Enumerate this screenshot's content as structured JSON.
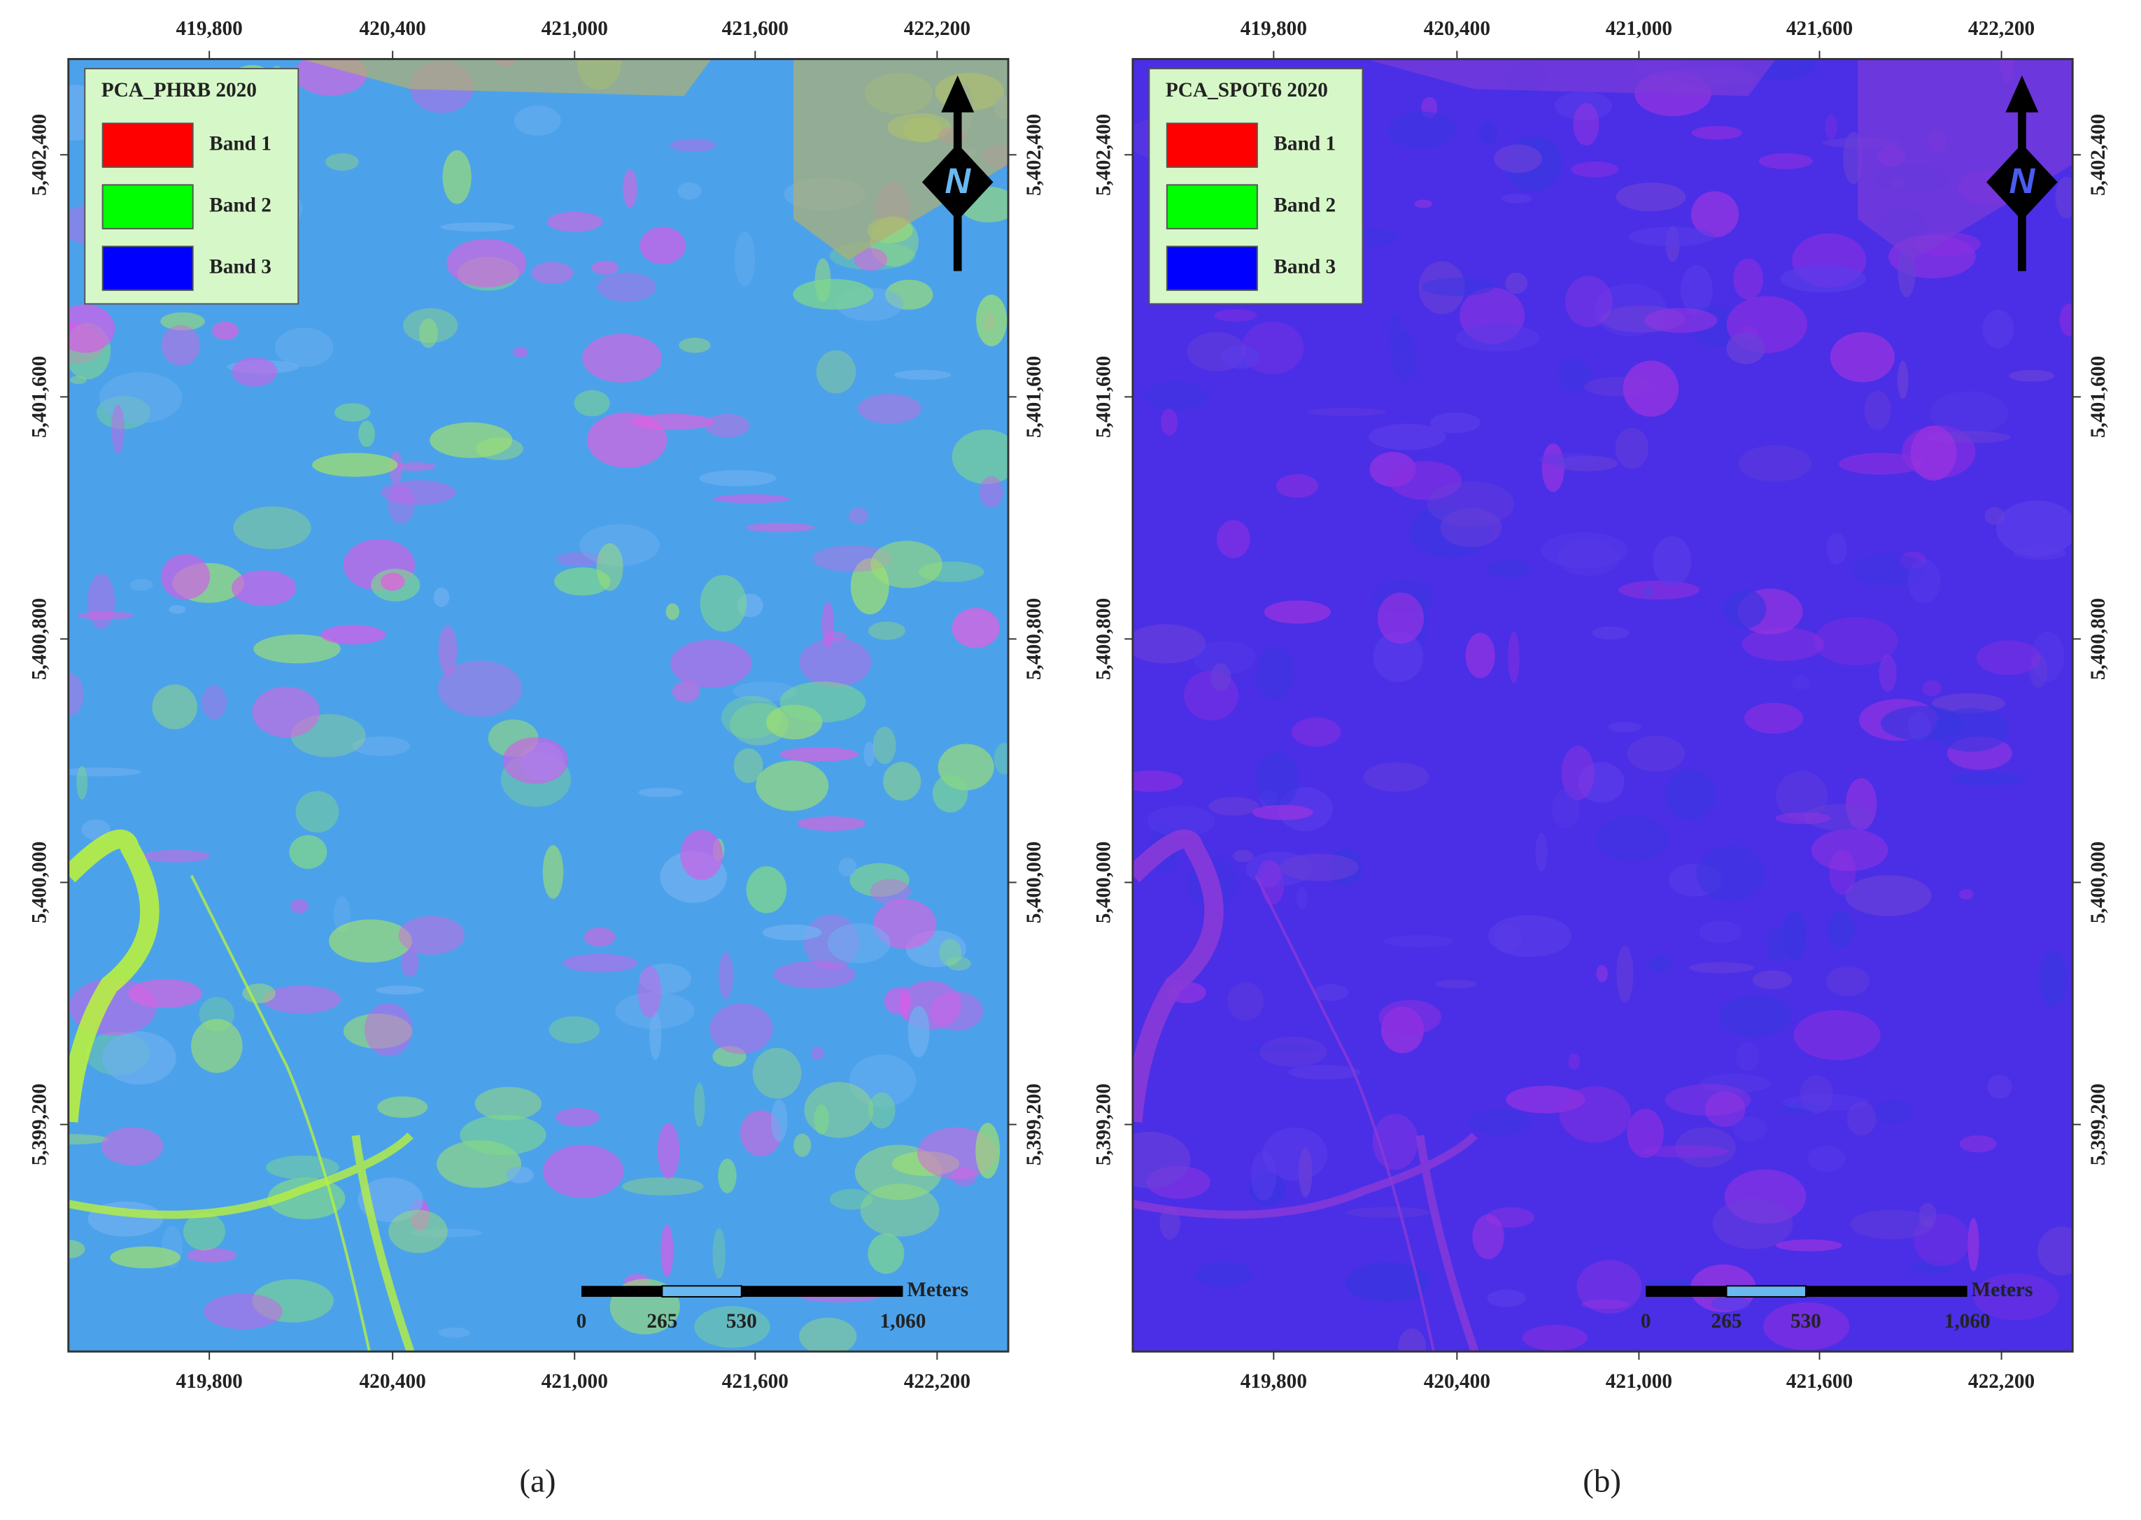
{
  "panels": [
    {
      "legend": {
        "title": "PCA_PHRB 2020",
        "items": [
          {
            "label": "Band 1",
            "color": "#ff0000"
          },
          {
            "label": "Band 2",
            "color": "#00ff00"
          },
          {
            "label": "Band 3",
            "color": "#0000ff"
          }
        ]
      },
      "x_ticks": [
        "419,800",
        "420,400",
        "421,000",
        "421,600",
        "422,200"
      ],
      "y_ticks": [
        "5,402,400",
        "5,401,600",
        "5,400,800",
        "5,400,000",
        "5,399,200"
      ],
      "north": "N",
      "scale_bar": {
        "labels": [
          "0",
          "265",
          "530",
          "1,060"
        ],
        "unit": "Meters"
      },
      "caption": "(a)"
    },
    {
      "legend": {
        "title": "PCA_SPOT6 2020",
        "items": [
          {
            "label": "Band 1",
            "color": "#ff0000"
          },
          {
            "label": "Band 2",
            "color": "#00ff00"
          },
          {
            "label": "Band 3",
            "color": "#0000ff"
          }
        ]
      },
      "x_ticks": [
        "419,800",
        "420,400",
        "421,000",
        "421,600",
        "422,200"
      ],
      "y_ticks": [
        "5,402,400",
        "5,401,600",
        "5,400,800",
        "5,400,000",
        "5,399,200"
      ],
      "north": "N",
      "scale_bar": {
        "labels": [
          "0",
          "265",
          "530",
          "1,060"
        ],
        "unit": "Meters"
      },
      "caption": "(b)"
    }
  ]
}
